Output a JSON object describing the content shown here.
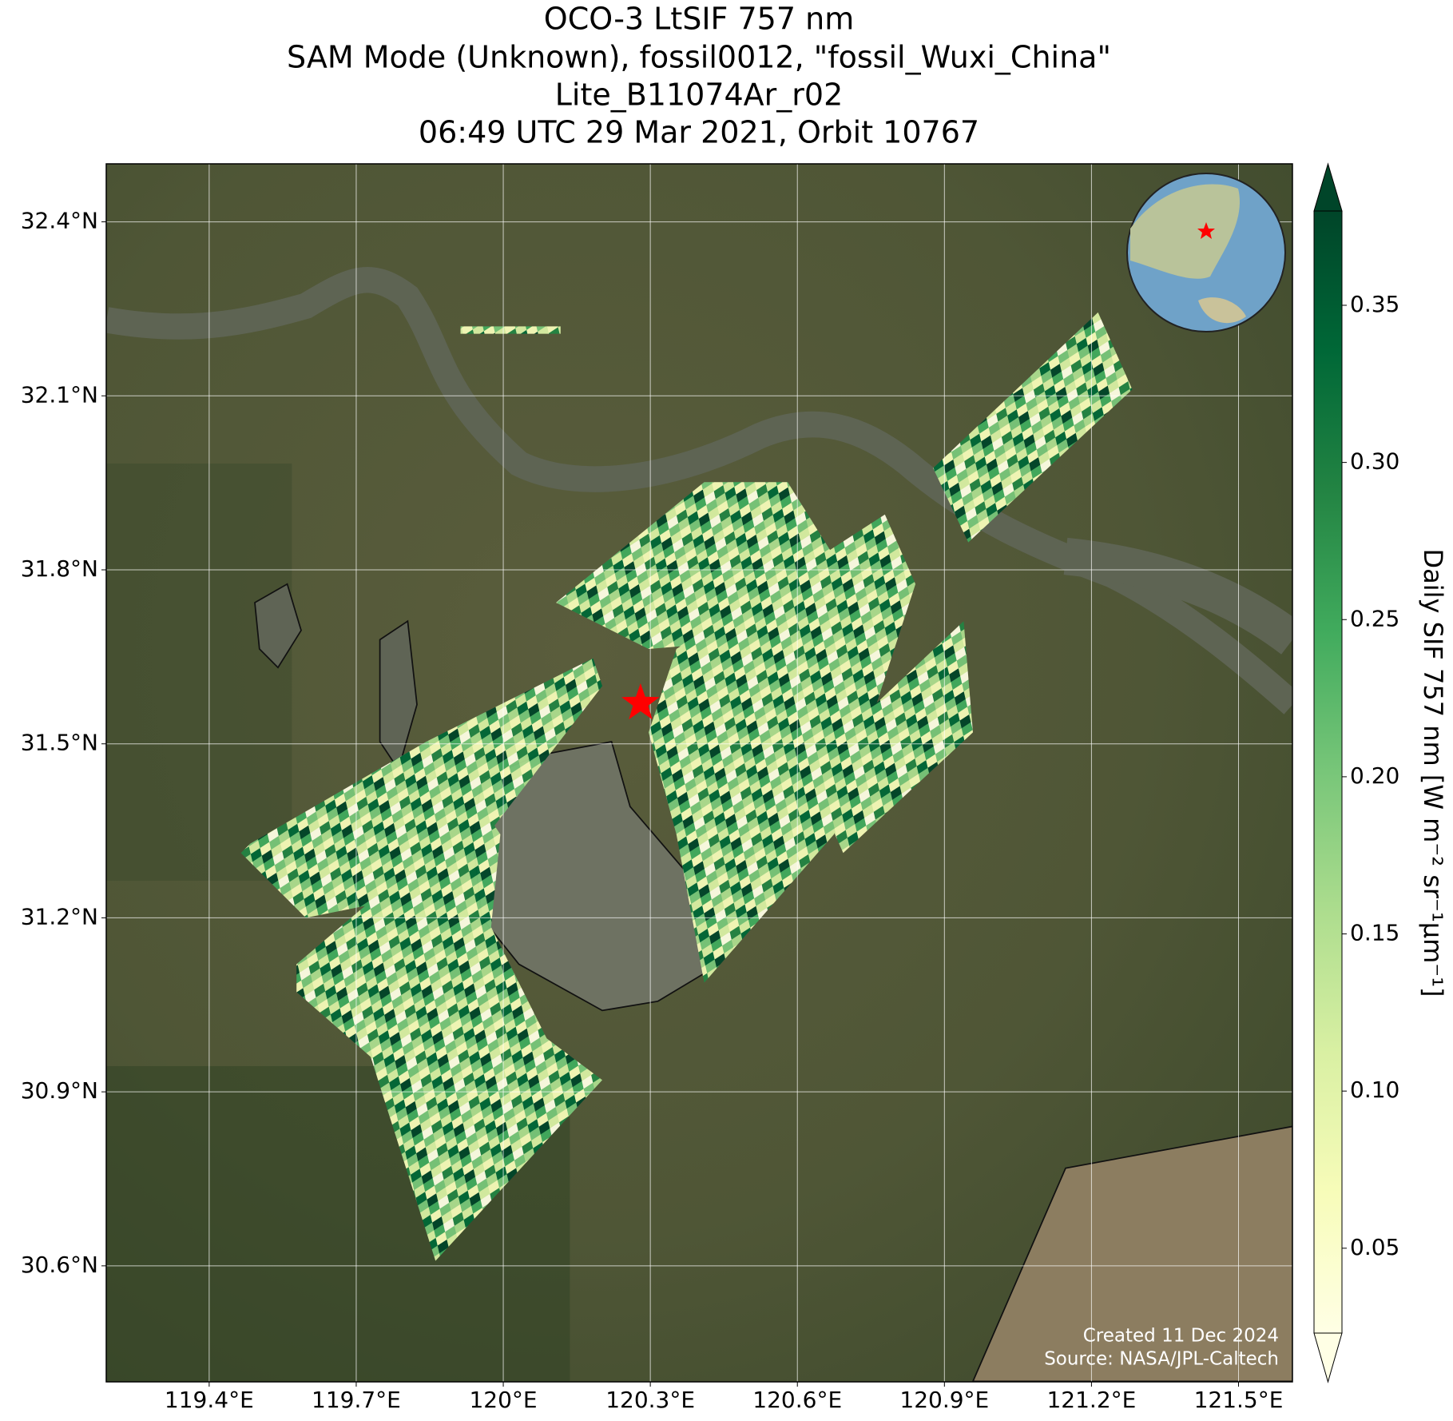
{
  "chart_data": {
    "type": "map",
    "title": [
      "OCO-3 LtSIF 757 nm",
      "SAM Mode (Unknown), fossil0012, \"fossil_Wuxi_China\"",
      "Lite_B11074Ar_r02",
      "06:49 UTC 29 Mar 2021, Orbit 10767"
    ],
    "xlim": [
      119.19,
      121.61
    ],
    "ylim": [
      30.4,
      32.5
    ],
    "xticks": [
      {
        "value": 119.4,
        "label": "119.4°E"
      },
      {
        "value": 119.7,
        "label": "119.7°E"
      },
      {
        "value": 120,
        "label": "120°E"
      },
      {
        "value": 120.3,
        "label": "120.3°E"
      },
      {
        "value": 120.6,
        "label": "120.6°E"
      },
      {
        "value": 120.9,
        "label": "120.9°E"
      },
      {
        "value": 121.2,
        "label": "121.2°E"
      },
      {
        "value": 121.5,
        "label": "121.5°E"
      }
    ],
    "yticks": [
      {
        "value": 30.6,
        "label": "30.6°N"
      },
      {
        "value": 30.9,
        "label": "30.9°N"
      },
      {
        "value": 31.2,
        "label": "31.2°N"
      },
      {
        "value": 31.5,
        "label": "31.5°N"
      },
      {
        "value": 31.8,
        "label": "31.8°N"
      },
      {
        "value": 32.1,
        "label": "32.1°N"
      },
      {
        "value": 32.4,
        "label": "32.4°N"
      }
    ],
    "grid": true,
    "target": {
      "lon": 120.28,
      "lat": 31.57,
      "color": "#ff0000"
    },
    "colorbar": {
      "label": "Daily SIF 757 nm [W m⁻² sr⁻¹μm⁻¹]",
      "lim": [
        0.023,
        0.38
      ],
      "ticks": [
        0.05,
        {
          "value": 0.1,
          "label": "0.10"
        },
        0.15,
        {
          "value": 0.2,
          "label": "0.20"
        },
        0.25,
        {
          "value": 0.3,
          "label": "0.30"
        },
        0.35
      ],
      "colormap": [
        "#ffffe5",
        "#f7fcb9",
        "#d9f0a3",
        "#addd8e",
        "#78c679",
        "#41ab5d",
        "#238443",
        "#006837",
        "#004529"
      ]
    },
    "credits": [
      "Created 11 Dec 2024",
      "Source: NASA/JPL-Caltech"
    ]
  }
}
